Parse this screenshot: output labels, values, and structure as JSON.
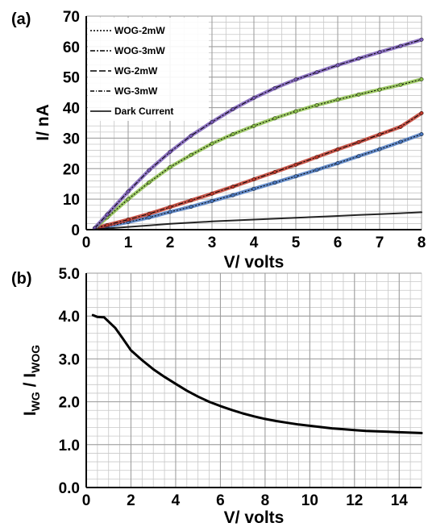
{
  "chart_data": [
    {
      "type": "line",
      "panel_label": "(a)",
      "xlabel": "V/ volts",
      "ylabel": "I/ nA",
      "xlim": [
        0,
        8
      ],
      "ylim": [
        0,
        70
      ],
      "xticks": [
        "0",
        "1",
        "2",
        "3",
        "4",
        "5",
        "6",
        "7",
        "8"
      ],
      "yticks": [
        "0",
        "10",
        "20",
        "30",
        "40",
        "50",
        "60",
        "70"
      ],
      "grid": true,
      "legend": "top-left",
      "series": [
        {
          "name": "WOG-2mW",
          "color": "#4a78c0",
          "x": [
            0.2,
            0.5,
            1,
            1.5,
            2,
            2.5,
            3,
            3.5,
            4,
            4.5,
            5,
            5.5,
            6,
            6.5,
            7,
            7.5,
            8
          ],
          "y": [
            0.4,
            1.0,
            2.5,
            4.0,
            5.8,
            7.5,
            9.4,
            11.3,
            13.4,
            15.4,
            17.5,
            19.6,
            21.8,
            24.1,
            26.4,
            28.8,
            31.3
          ]
        },
        {
          "name": "WOG-3mW",
          "color": "#c0392b",
          "x": [
            0.2,
            0.5,
            1,
            1.5,
            2,
            2.5,
            3,
            3.5,
            4,
            4.5,
            5,
            5.5,
            6,
            6.5,
            7,
            7.5,
            8
          ],
          "y": [
            0.5,
            1.5,
            3.3,
            5.2,
            7.4,
            9.6,
            11.8,
            14.1,
            16.5,
            18.9,
            21.3,
            23.8,
            26.3,
            28.7,
            31.2,
            33.7,
            38.2
          ]
        },
        {
          "name": "WG-2mW",
          "color": "#8cc04a",
          "x": [
            0.2,
            0.5,
            1,
            1.5,
            2,
            2.5,
            3,
            3.5,
            4,
            4.5,
            5,
            5.5,
            6,
            6.5,
            7,
            7.5,
            8
          ],
          "y": [
            0.5,
            4.0,
            10.0,
            15.5,
            20.5,
            24.5,
            28.2,
            31.3,
            34.0,
            36.5,
            38.8,
            40.8,
            42.6,
            44.3,
            45.9,
            47.5,
            49.3
          ]
        },
        {
          "name": "WG-3mW",
          "color": "#7a5cb8",
          "x": [
            0.2,
            0.5,
            1,
            1.5,
            2,
            2.5,
            3,
            3.5,
            4,
            4.5,
            5,
            5.5,
            6,
            6.5,
            7,
            7.5,
            8
          ],
          "y": [
            0.5,
            5.0,
            12.5,
            19.5,
            25.5,
            30.8,
            35.3,
            39.5,
            43.2,
            46.4,
            49.2,
            51.6,
            53.9,
            56.1,
            58.2,
            60.2,
            62.3
          ]
        },
        {
          "name": "Dark Current",
          "color": "#000000",
          "x": [
            0.2,
            0.5,
            1,
            1.5,
            2,
            2.5,
            3,
            3.5,
            4,
            4.5,
            5,
            5.5,
            6,
            6.5,
            7,
            7.5,
            8
          ],
          "y": [
            0.1,
            0.4,
            0.9,
            1.4,
            1.9,
            2.3,
            2.7,
            3.0,
            3.3,
            3.6,
            3.9,
            4.2,
            4.5,
            4.8,
            5.1,
            5.4,
            5.7
          ]
        }
      ]
    },
    {
      "type": "line",
      "panel_label": "(b)",
      "xlabel": "V/ volts",
      "ylabel": "IWG / IWOG",
      "xlim": [
        0,
        15
      ],
      "ylim": [
        0,
        5
      ],
      "xticks": [
        "0",
        "2",
        "4",
        "6",
        "8",
        "10",
        "12",
        "14"
      ],
      "yticks": [
        "0.0",
        "1.0",
        "2.0",
        "3.0",
        "4.0",
        "5.0"
      ],
      "grid": true,
      "series": [
        {
          "color": "#000000",
          "x": [
            0.3,
            0.5,
            0.8,
            1.0,
            1.3,
            1.6,
            2.0,
            2.5,
            3,
            3.5,
            4,
            4.5,
            5,
            5.5,
            6,
            6.5,
            7,
            7.5,
            8,
            8.5,
            9,
            9.5,
            10,
            10.5,
            11,
            11.5,
            12,
            12.5,
            13,
            13.5,
            14,
            14.5,
            15
          ],
          "y": [
            4.02,
            3.98,
            3.97,
            3.87,
            3.72,
            3.5,
            3.2,
            2.97,
            2.76,
            2.58,
            2.42,
            2.26,
            2.12,
            2.0,
            1.9,
            1.81,
            1.73,
            1.66,
            1.6,
            1.55,
            1.51,
            1.47,
            1.44,
            1.41,
            1.38,
            1.36,
            1.34,
            1.32,
            1.31,
            1.3,
            1.29,
            1.28,
            1.27
          ]
        }
      ]
    }
  ]
}
